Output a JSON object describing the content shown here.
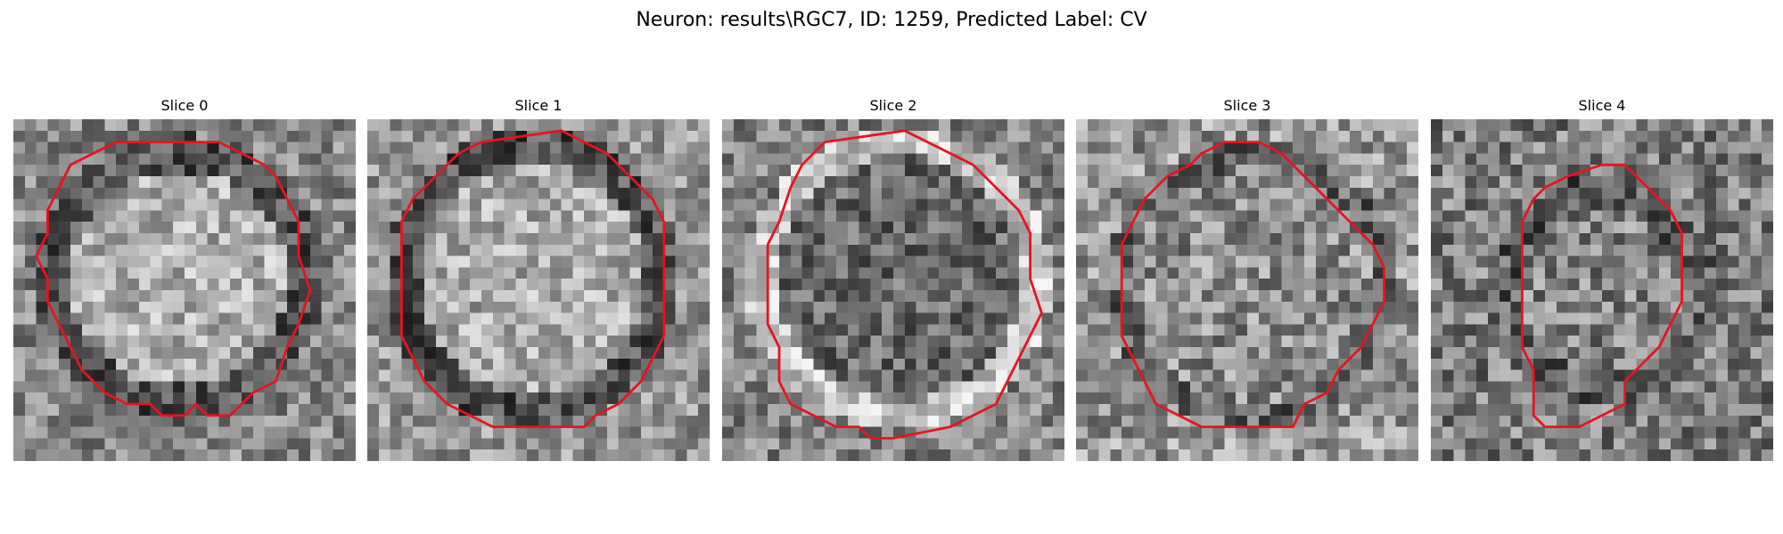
{
  "figure": {
    "title": "Neuron: results\\RGC7, ID: 1259, Predicted Label: CV",
    "panels": [
      {
        "title": "Slice 0",
        "contour_color": "#e8141c"
      },
      {
        "title": "Slice 1",
        "contour_color": "#e8141c"
      },
      {
        "title": "Slice 2",
        "contour_color": "#e8141c"
      },
      {
        "title": "Slice 3",
        "contour_color": "#e8141c"
      },
      {
        "title": "Slice 4",
        "contour_color": "#e8141c"
      }
    ]
  }
}
